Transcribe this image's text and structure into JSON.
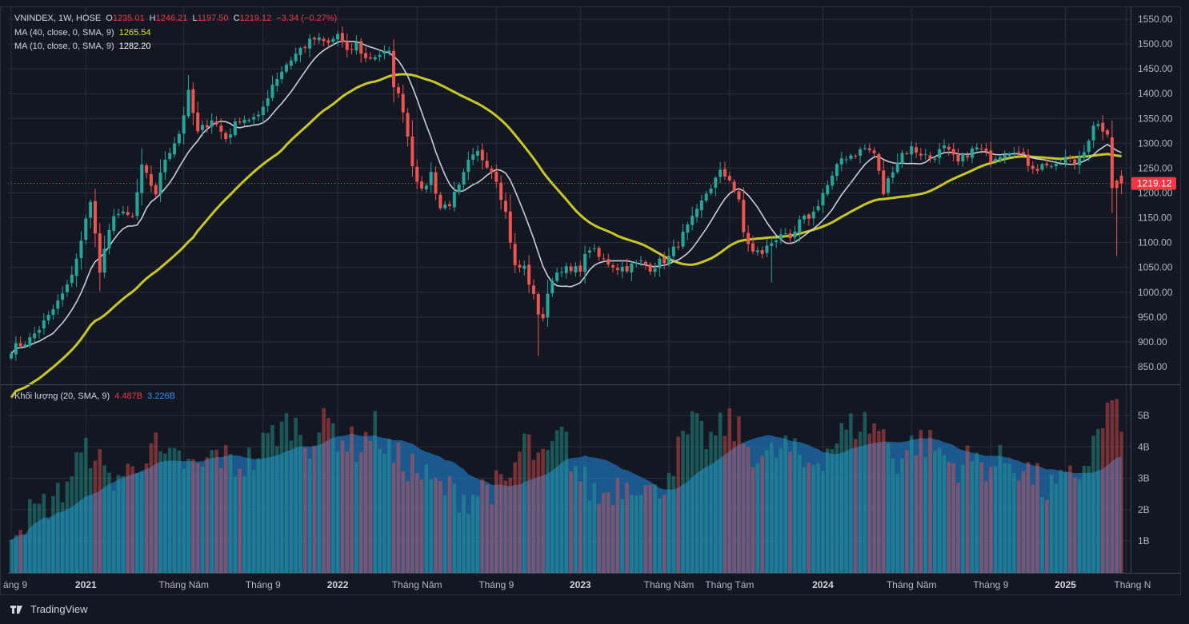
{
  "header": {
    "symbol": "VNINDEX, 1W, HOSE",
    "o_label": "O",
    "o": "1235.01",
    "h_label": "H",
    "h": "1246.21",
    "l_label": "L",
    "l": "1197.50",
    "c_label": "C",
    "c": "1219.12",
    "change": "−3.34 (−0.27%)",
    "ma40_label": "MA (40, close, 0, SMA, 9)",
    "ma40_value": "1265.54",
    "ma10_label": "MA (10, close, 0, SMA, 9)",
    "ma10_value": "1282.20",
    "volume_label": "Khối lượng (20, SMA, 9)",
    "volume_value": "4.487B",
    "volume_sma": "3.226B"
  },
  "footer": {
    "brand": "TradingView"
  },
  "colors": {
    "background": "#131722",
    "up": "#26a69a",
    "down": "#ef5350",
    "ma40": "#c8c627",
    "ma10": "#c9cdd6",
    "vol_sma": "#1f6fb2",
    "price_tag": "#f23645"
  },
  "chart_data": {
    "type": "candlestick",
    "title": "VNINDEX, 1W, HOSE",
    "ylim": [
      830,
      1560
    ],
    "y_ticks": [
      "1550.00",
      "1500.00",
      "1450.00",
      "1400.00",
      "1350.00",
      "1300.00",
      "1250.00",
      "1200.00",
      "1150.00",
      "1100.00",
      "1050.00",
      "1000.00",
      "950.00",
      "900.00",
      "850.00"
    ],
    "last_price": "1219.12",
    "x_ticks": [
      {
        "label": "áng 9",
        "bar": 0
      },
      {
        "label": "2021",
        "bar": 16
      },
      {
        "label": "Tháng Năm",
        "bar": 37
      },
      {
        "label": "Tháng 9",
        "bar": 54
      },
      {
        "label": "2022",
        "bar": 70
      },
      {
        "label": "Tháng Năm",
        "bar": 87
      },
      {
        "label": "Tháng 9",
        "bar": 104
      },
      {
        "label": "2023",
        "bar": 122
      },
      {
        "label": "Tháng Năm",
        "bar": 141
      },
      {
        "label": "Tháng Tám",
        "bar": 154
      },
      {
        "label": "2024",
        "bar": 174
      },
      {
        "label": "Tháng Năm",
        "bar": 193
      },
      {
        "label": "Tháng 9",
        "bar": 210
      },
      {
        "label": "2025",
        "bar": 226
      },
      {
        "label": "Tháng N",
        "bar": 239
      }
    ],
    "anchors": [
      [
        0,
        885
      ],
      [
        4,
        905
      ],
      [
        8,
        950
      ],
      [
        12,
        1010
      ],
      [
        15,
        1100
      ],
      [
        17,
        1190
      ],
      [
        19,
        1040
      ],
      [
        22,
        1160
      ],
      [
        26,
        1150
      ],
      [
        28,
        1250
      ],
      [
        31,
        1200
      ],
      [
        33,
        1270
      ],
      [
        36,
        1320
      ],
      [
        38,
        1400
      ],
      [
        40,
        1320
      ],
      [
        43,
        1350
      ],
      [
        46,
        1310
      ],
      [
        49,
        1350
      ],
      [
        53,
        1350
      ],
      [
        56,
        1420
      ],
      [
        59,
        1460
      ],
      [
        62,
        1490
      ],
      [
        65,
        1510
      ],
      [
        68,
        1500
      ],
      [
        70,
        1520
      ],
      [
        72,
        1480
      ],
      [
        74,
        1500
      ],
      [
        76,
        1470
      ],
      [
        79,
        1480
      ],
      [
        81,
        1480
      ],
      [
        82,
        1420
      ],
      [
        84,
        1370
      ],
      [
        86,
        1260
      ],
      [
        88,
        1200
      ],
      [
        90,
        1240
      ],
      [
        92,
        1170
      ],
      [
        94,
        1180
      ],
      [
        96,
        1210
      ],
      [
        98,
        1260
      ],
      [
        100,
        1280
      ],
      [
        102,
        1260
      ],
      [
        104,
        1230
      ],
      [
        106,
        1160
      ],
      [
        108,
        1050
      ],
      [
        110,
        1050
      ],
      [
        111,
        1020
      ],
      [
        113,
        960
      ],
      [
        114,
        950
      ],
      [
        116,
        1030
      ],
      [
        118,
        1050
      ],
      [
        120,
        1040
      ],
      [
        122,
        1050
      ],
      [
        124,
        1090
      ],
      [
        126,
        1070
      ],
      [
        128,
        1060
      ],
      [
        130,
        1050
      ],
      [
        132,
        1050
      ],
      [
        135,
        1060
      ],
      [
        137,
        1050
      ],
      [
        139,
        1060
      ],
      [
        141,
        1070
      ],
      [
        143,
        1100
      ],
      [
        145,
        1130
      ],
      [
        147,
        1160
      ],
      [
        149,
        1200
      ],
      [
        152,
        1240
      ],
      [
        154,
        1230
      ],
      [
        156,
        1180
      ],
      [
        157,
        1120
      ],
      [
        159,
        1080
      ],
      [
        161,
        1080
      ],
      [
        163,
        1100
      ],
      [
        165,
        1120
      ],
      [
        167,
        1100
      ],
      [
        169,
        1140
      ],
      [
        172,
        1160
      ],
      [
        174,
        1200
      ],
      [
        176,
        1230
      ],
      [
        178,
        1270
      ],
      [
        181,
        1280
      ],
      [
        183,
        1290
      ],
      [
        185,
        1280
      ],
      [
        187,
        1200
      ],
      [
        189,
        1250
      ],
      [
        191,
        1280
      ],
      [
        193,
        1290
      ],
      [
        195,
        1280
      ],
      [
        197,
        1270
      ],
      [
        200,
        1290
      ],
      [
        203,
        1260
      ],
      [
        205,
        1280
      ],
      [
        207,
        1290
      ],
      [
        210,
        1270
      ],
      [
        212,
        1280
      ],
      [
        215,
        1290
      ],
      [
        218,
        1260
      ],
      [
        220,
        1250
      ],
      [
        222,
        1260
      ],
      [
        224,
        1250
      ],
      [
        226,
        1270
      ],
      [
        228,
        1260
      ],
      [
        230,
        1290
      ],
      [
        232,
        1330
      ],
      [
        234,
        1330
      ],
      [
        235,
        1310
      ],
      [
        236,
        1220
      ],
      [
        237,
        1210
      ],
      [
        238,
        1220
      ]
    ],
    "volume": {
      "ylim": [
        0,
        6
      ],
      "y_ticks": [
        "5B",
        "4B",
        "3B",
        "2B",
        "1B"
      ],
      "last": "4.487B",
      "sma": "3.226B",
      "anchors": [
        [
          0,
          1.5
        ],
        [
          6,
          2
        ],
        [
          10,
          2.4
        ],
        [
          14,
          3.5
        ],
        [
          18,
          4
        ],
        [
          20,
          3
        ],
        [
          26,
          3.2
        ],
        [
          30,
          4.2
        ],
        [
          33,
          3.4
        ],
        [
          36,
          3.6
        ],
        [
          40,
          3.2
        ],
        [
          44,
          3.8
        ],
        [
          48,
          3.4
        ],
        [
          52,
          3.6
        ],
        [
          56,
          4.4
        ],
        [
          60,
          4.8
        ],
        [
          64,
          4.2
        ],
        [
          68,
          4.8
        ],
        [
          70,
          4.4
        ],
        [
          74,
          4
        ],
        [
          78,
          4.6
        ],
        [
          82,
          3.6
        ],
        [
          86,
          3.4
        ],
        [
          90,
          2.8
        ],
        [
          94,
          2.6
        ],
        [
          98,
          2.4
        ],
        [
          102,
          2.8
        ],
        [
          106,
          2.6
        ],
        [
          110,
          4.2
        ],
        [
          114,
          3.4
        ],
        [
          118,
          4.4
        ],
        [
          122,
          3
        ],
        [
          126,
          2.4
        ],
        [
          130,
          2.8
        ],
        [
          134,
          3
        ],
        [
          138,
          2.4
        ],
        [
          142,
          3.6
        ],
        [
          146,
          4.6
        ],
        [
          150,
          4.2
        ],
        [
          154,
          4.8
        ],
        [
          158,
          4
        ],
        [
          162,
          3.6
        ],
        [
          166,
          4
        ],
        [
          170,
          3.4
        ],
        [
          174,
          3.8
        ],
        [
          178,
          4.4
        ],
        [
          182,
          4.8
        ],
        [
          186,
          4.6
        ],
        [
          190,
          3.6
        ],
        [
          194,
          4.2
        ],
        [
          198,
          4
        ],
        [
          202,
          3.4
        ],
        [
          206,
          3.6
        ],
        [
          210,
          3.4
        ],
        [
          214,
          3.6
        ],
        [
          218,
          3.2
        ],
        [
          222,
          2.6
        ],
        [
          226,
          2.8
        ],
        [
          230,
          3.4
        ],
        [
          233,
          4.4
        ],
        [
          236,
          5.4
        ],
        [
          238,
          4.5
        ]
      ]
    }
  }
}
